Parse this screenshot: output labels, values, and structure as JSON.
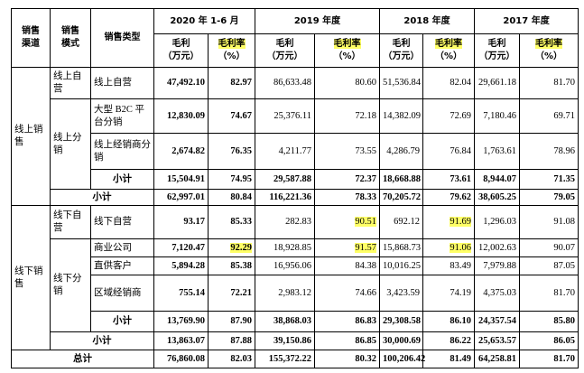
{
  "table": {
    "headers": [
      "销售渠道",
      "销售模式",
      "销售类型"
    ],
    "periods": [
      "2020 年 1-6 月",
      "2019 年度",
      "2018 年度",
      "2017 年度"
    ],
    "subheaders": [
      [
        "毛利",
        "（万元）"
      ],
      [
        "毛利率",
        "（%）"
      ]
    ],
    "channels": [
      "线上销售",
      "线下销售"
    ],
    "modes": [
      "线上自营",
      "线上分销",
      "线下自营",
      "线下分销"
    ],
    "rows": [
      {
        "type": "线上自营",
        "values": [
          "47,492.10",
          "82.97",
          "86,633.48",
          "80.60",
          "51,536.84",
          "82.04",
          "29,661.18",
          "81.70"
        ]
      },
      {
        "type": "大型 B2C 平台分销",
        "values": [
          "12,830.09",
          "74.67",
          "25,376.11",
          "72.18",
          "14,382.09",
          "72.69",
          "7,180.46",
          "69.71"
        ]
      },
      {
        "type": "线上经销商分销",
        "values": [
          "2,674.82",
          "76.35",
          "4,211.77",
          "73.55",
          "4,286.79",
          "76.84",
          "1,763.61",
          "78.96"
        ]
      },
      {
        "type": "小计",
        "values": [
          "15,504.91",
          "74.95",
          "29,587.88",
          "72.37",
          "18,668.88",
          "73.61",
          "8,944.07",
          "71.35"
        ]
      },
      {
        "type": "小计",
        "values": [
          "62,997.01",
          "80.84",
          "116,221.36",
          "78.33",
          "70,205.72",
          "79.62",
          "38,605.25",
          "79.05"
        ]
      },
      {
        "type": "线下自营",
        "values": [
          "93.17",
          "85.33",
          "282.83",
          "90.51",
          "692.12",
          "91.69",
          "1,296.03",
          "91.08"
        ]
      },
      {
        "type": "商业公司",
        "values": [
          "7,120.47",
          "92.29",
          "18,928.85",
          "91.57",
          "15,868.73",
          "91.06",
          "12,002.63",
          "90.07"
        ]
      },
      {
        "type": "直供客户",
        "values": [
          "5,894.28",
          "85.38",
          "16,956.06",
          "84.38",
          "10,016.25",
          "83.49",
          "7,979.88",
          "87.05"
        ]
      },
      {
        "type": "区域经销商",
        "values": [
          "755.14",
          "72.21",
          "2,983.12",
          "74.66",
          "3,423.59",
          "74.19",
          "4,375.03",
          "81.70"
        ]
      },
      {
        "type": "小计",
        "values": [
          "13,769.90",
          "87.90",
          "38,868.03",
          "86.83",
          "29,308.58",
          "86.10",
          "24,357.54",
          "85.80"
        ]
      },
      {
        "type": "小计",
        "values": [
          "13,863.07",
          "87.88",
          "39,150.86",
          "86.85",
          "30,000.69",
          "86.22",
          "25,653.57",
          "86.05"
        ]
      },
      {
        "type": "总计",
        "values": [
          "76,860.08",
          "82.03",
          "155,372.22",
          "80.32",
          "100,206.42",
          "81.49",
          "64,258.81",
          "81.70"
        ]
      }
    ]
  }
}
